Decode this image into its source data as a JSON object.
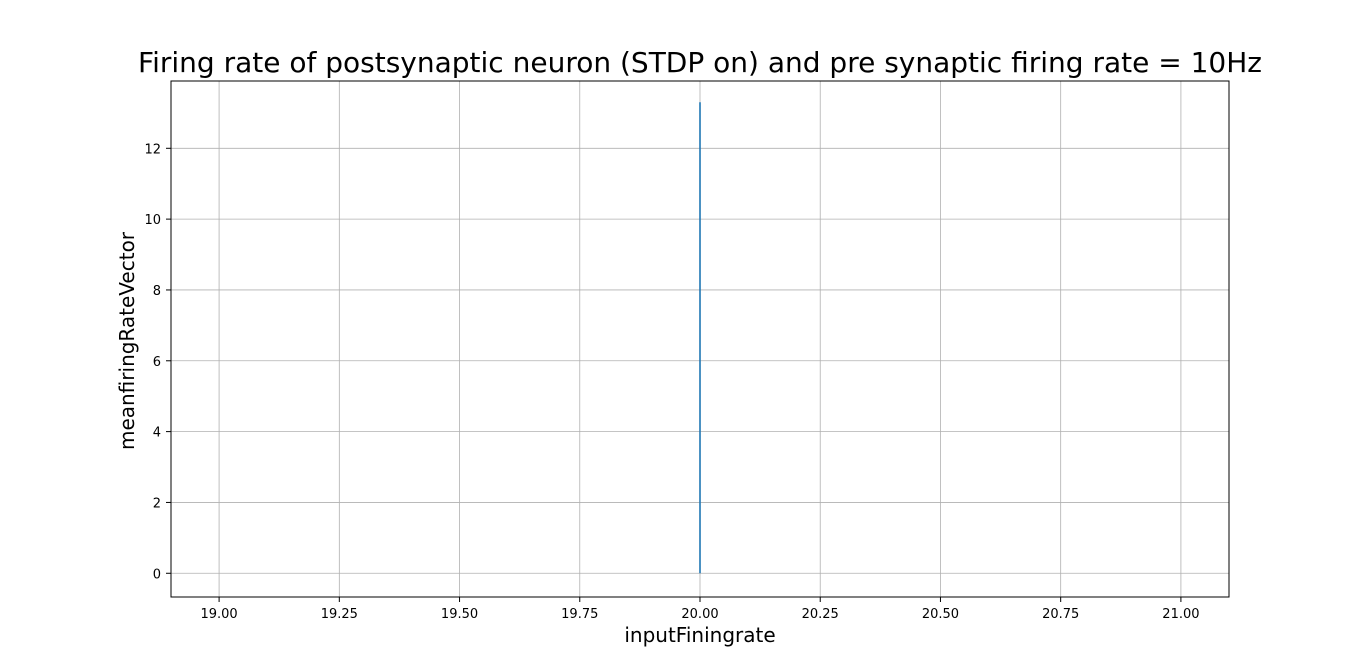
{
  "chart_data": {
    "type": "line",
    "title": "Firing rate of postsynaptic neuron (STDP on) and pre synaptic firing rate = 10Hz",
    "xlabel": "inputFiningrate",
    "ylabel": "meanfiringRateVector",
    "xlim": [
      18.9,
      21.1
    ],
    "ylim": [
      -0.67,
      13.9
    ],
    "xticks": [
      19.0,
      19.25,
      19.5,
      19.75,
      20.0,
      20.25,
      20.5,
      20.75,
      21.0
    ],
    "xtick_labels": [
      "19.00",
      "19.25",
      "19.50",
      "19.75",
      "20.00",
      "20.25",
      "20.50",
      "20.75",
      "21.00"
    ],
    "yticks": [
      0,
      2,
      4,
      6,
      8,
      10,
      12
    ],
    "ytick_labels": [
      "0",
      "2",
      "4",
      "6",
      "8",
      "10",
      "12"
    ],
    "grid": true,
    "series": [
      {
        "x": [
          20.0,
          20.0
        ],
        "y": [
          0.0,
          13.3
        ],
        "color": "#1f77b4"
      }
    ]
  }
}
